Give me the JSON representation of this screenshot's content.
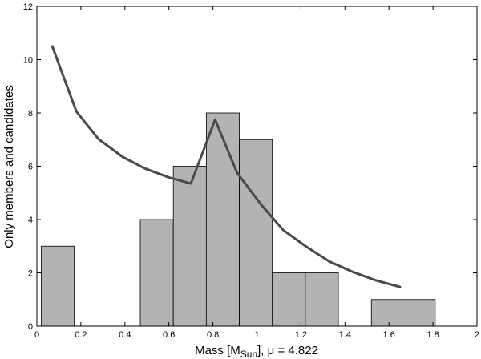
{
  "chart_data": {
    "type": "bar",
    "xlabel": "Mass [M",
    "xlabel_sub": "Sun",
    "xlabel_suffix": "], μ = 4.822",
    "ylabel": "Only members and candidates",
    "xlim": [
      0,
      2
    ],
    "ylim": [
      0,
      12
    ],
    "xticks": [
      0,
      0.2,
      0.4,
      0.6,
      0.8,
      1,
      1.2,
      1.4,
      1.6,
      1.8,
      2
    ],
    "xtick_labels": [
      "0",
      "0.2",
      "0.4",
      "0.6",
      "0.8",
      "1",
      "1.2",
      "1.4",
      "1.6",
      "1.8",
      "2"
    ],
    "yticks": [
      0,
      2,
      4,
      6,
      8,
      10,
      12
    ],
    "ytick_labels": [
      "0",
      "2",
      "4",
      "6",
      "8",
      "10",
      "12"
    ],
    "bars": [
      {
        "x0": 0.02,
        "x1": 0.17,
        "value": 3
      },
      {
        "x0": 0.47,
        "x1": 0.62,
        "value": 4
      },
      {
        "x0": 0.62,
        "x1": 0.77,
        "value": 6
      },
      {
        "x0": 0.77,
        "x1": 0.92,
        "value": 8
      },
      {
        "x0": 0.92,
        "x1": 1.07,
        "value": 7
      },
      {
        "x0": 1.07,
        "x1": 1.22,
        "value": 2
      },
      {
        "x0": 1.22,
        "x1": 1.37,
        "value": 2
      },
      {
        "x0": 1.52,
        "x1": 1.81,
        "value": 1
      }
    ],
    "curve": {
      "x": [
        0.07,
        0.18,
        0.28,
        0.39,
        0.49,
        0.6,
        0.7,
        0.81,
        0.91,
        1.02,
        1.12,
        1.23,
        1.33,
        1.44,
        1.54,
        1.65
      ],
      "y": [
        10.5,
        8.05,
        7.02,
        6.35,
        5.92,
        5.58,
        5.35,
        7.75,
        5.75,
        4.55,
        3.6,
        2.95,
        2.42,
        2.02,
        1.72,
        1.47
      ]
    },
    "colors": {
      "bar_fill": "#b3b3b3",
      "bar_edge": "#000000",
      "curve": "#4a4a4a"
    }
  }
}
